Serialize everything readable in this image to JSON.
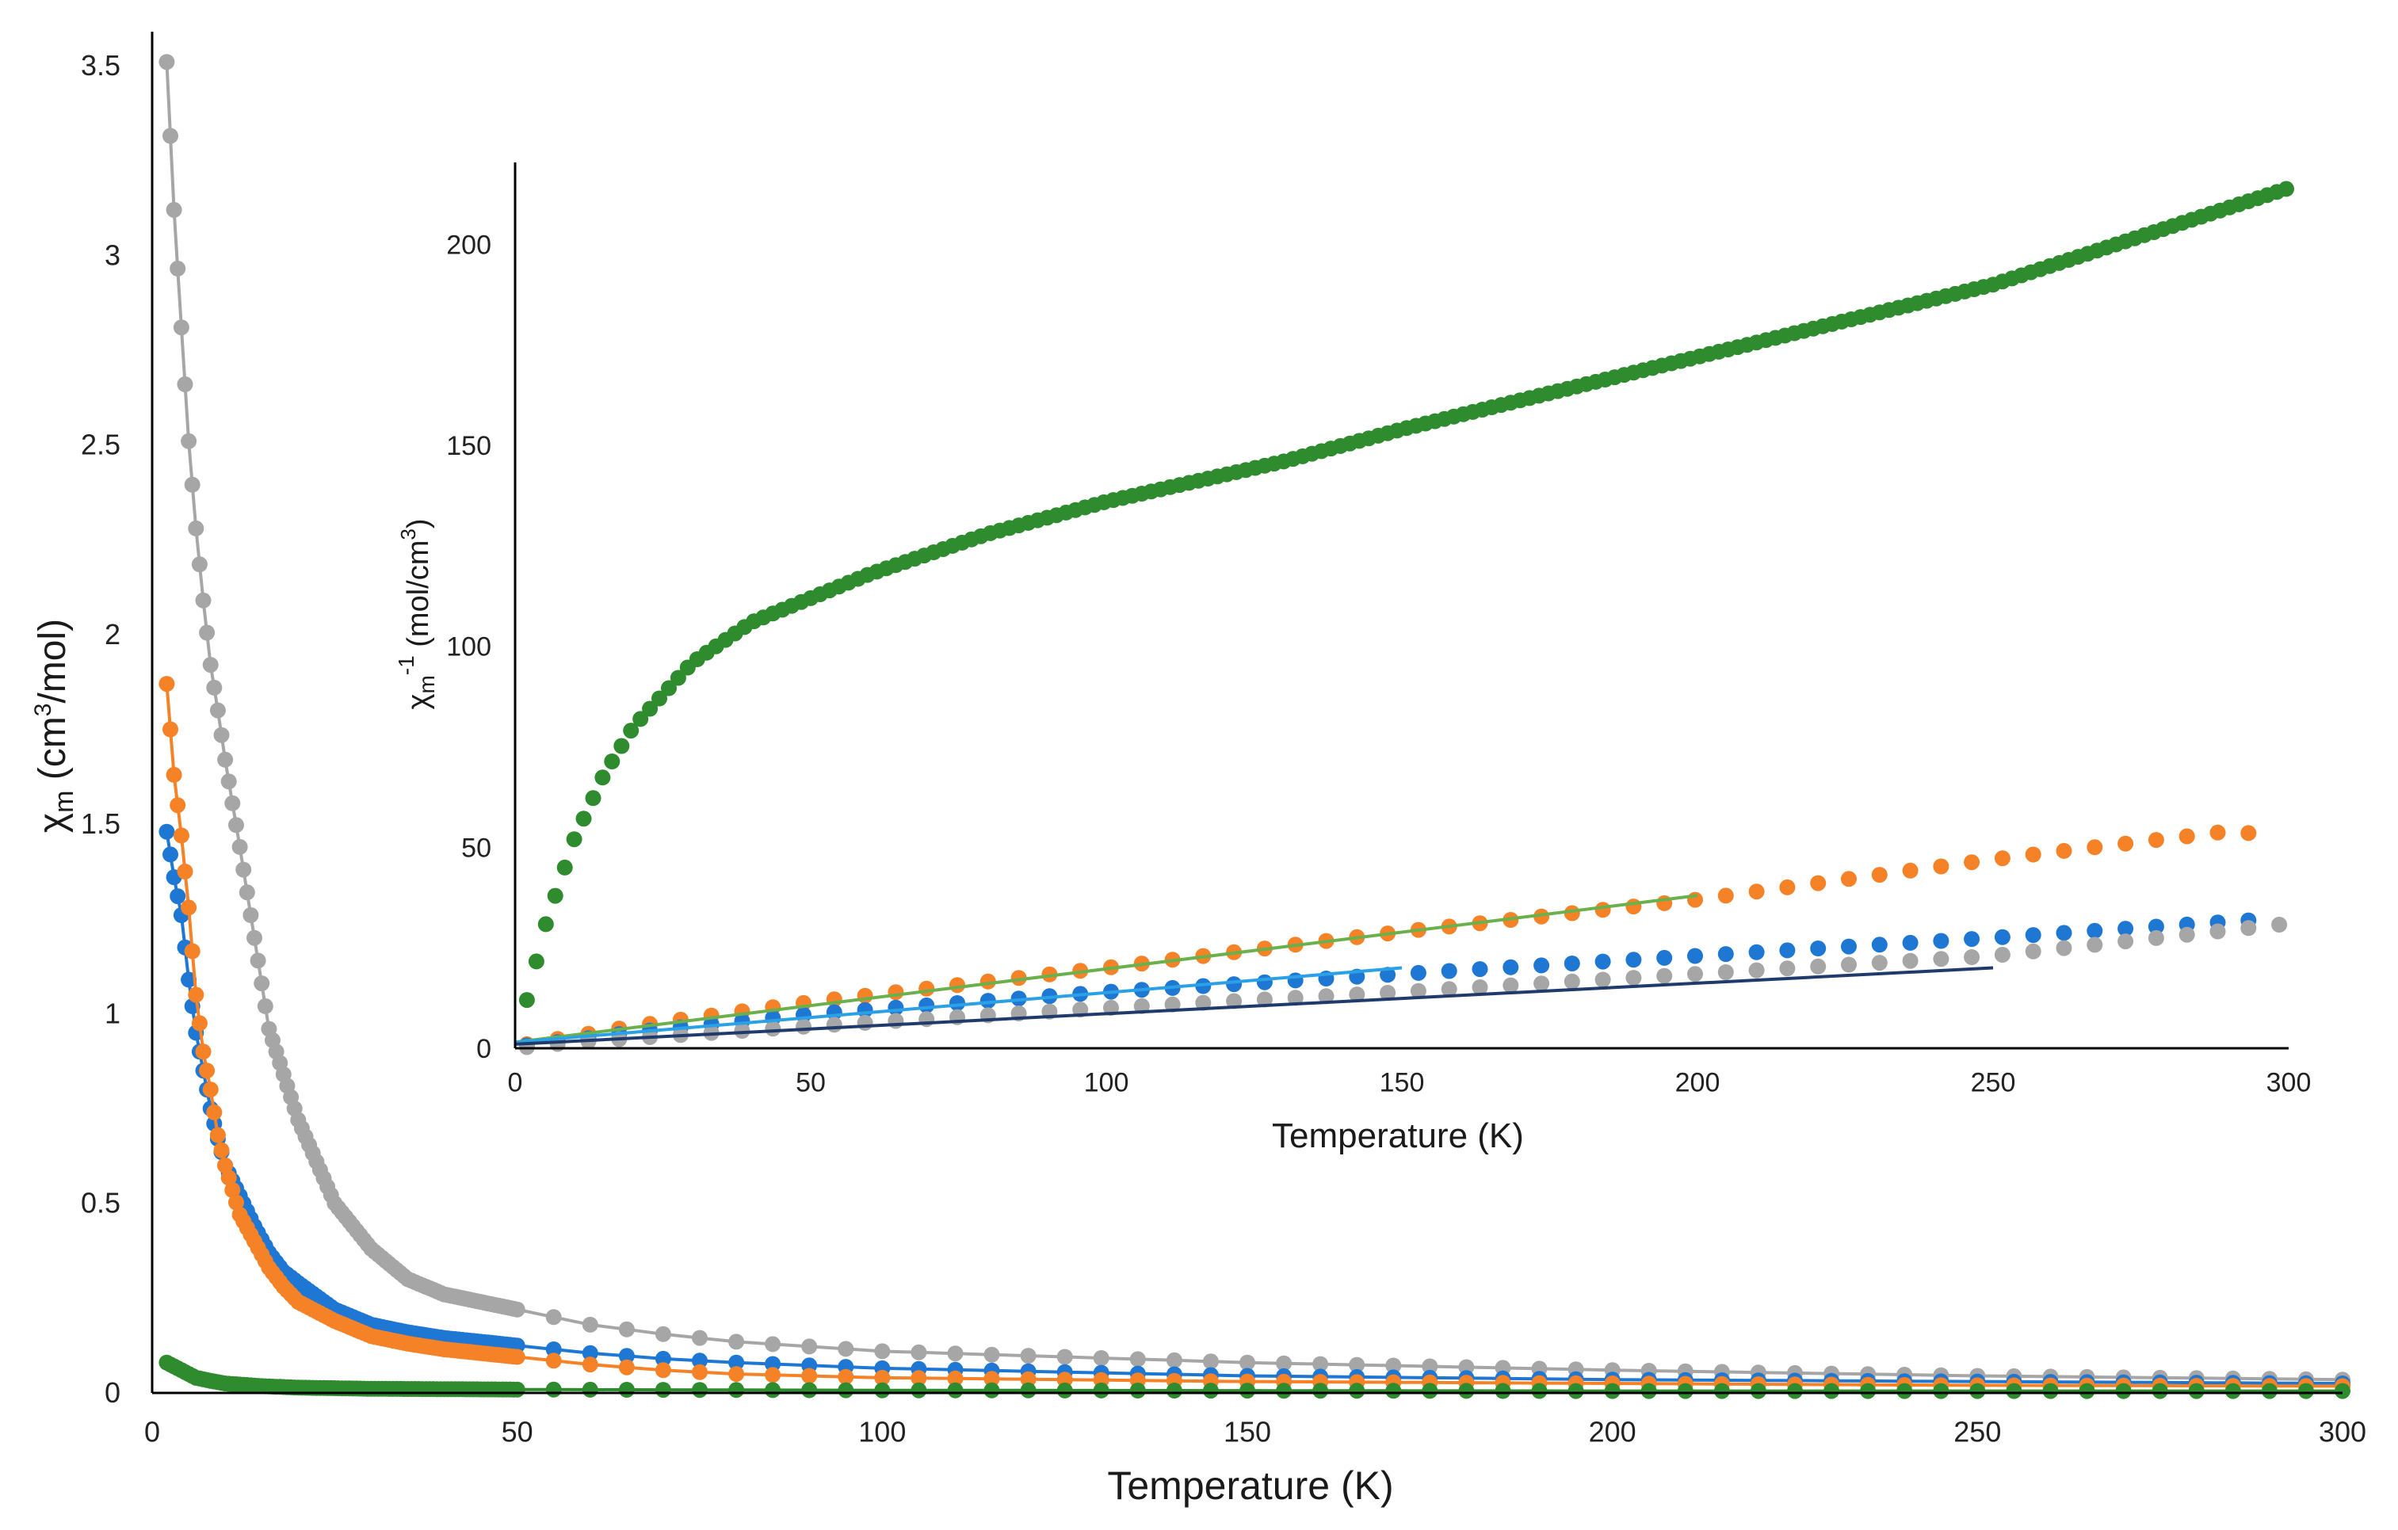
{
  "chart_data": [
    {
      "id": "main",
      "type": "line",
      "xlabel": "Temperature (K)",
      "ylabel": {
        "base": "χ",
        "sub": "m",
        "unit_pre": " (cm",
        "unit_sup": "3",
        "unit_post": "/mol)"
      },
      "xlim": [
        0,
        300
      ],
      "ylim": [
        0,
        3.5
      ],
      "xticks": [
        "0",
        "50",
        "100",
        "150",
        "200",
        "250",
        "300"
      ],
      "yticks": [
        "0",
        "0.5",
        "1",
        "1.5",
        "2",
        "2.5",
        "3",
        "3.5"
      ],
      "grid": false,
      "legend": "none",
      "series": [
        {
          "name": "grey",
          "color": "#a6a6a6",
          "x": [
            2,
            3,
            4,
            5,
            6,
            7,
            8,
            9,
            10,
            12,
            14,
            16,
            18,
            20,
            25,
            30,
            35,
            40,
            45,
            50,
            60,
            70,
            80,
            100,
            150,
            200,
            250,
            300
          ],
          "y": [
            3.51,
            3.12,
            2.81,
            2.51,
            2.28,
            2.09,
            1.92,
            1.8,
            1.67,
            1.44,
            1.2,
            0.96,
            0.84,
            0.72,
            0.5,
            0.38,
            0.3,
            0.26,
            0.24,
            0.22,
            0.18,
            0.155,
            0.135,
            0.11,
            0.08,
            0.06,
            0.045,
            0.035
          ]
        },
        {
          "name": "blue",
          "color": "#1f77d4",
          "x": [
            2,
            3,
            4,
            5,
            6,
            7,
            8,
            9,
            10,
            12,
            14,
            16,
            18,
            20,
            25,
            30,
            35,
            40,
            45,
            50,
            60,
            70,
            80,
            100,
            150,
            200,
            250,
            300
          ],
          "y": [
            1.48,
            1.36,
            1.26,
            1.09,
            0.95,
            0.85,
            0.75,
            0.67,
            0.6,
            0.52,
            0.44,
            0.37,
            0.32,
            0.29,
            0.22,
            0.18,
            0.16,
            0.145,
            0.135,
            0.125,
            0.105,
            0.09,
            0.08,
            0.065,
            0.045,
            0.035,
            0.03,
            0.025
          ]
        },
        {
          "name": "orange",
          "color": "#f58226",
          "x": [
            2,
            3,
            4,
            5,
            6,
            7,
            8,
            9,
            10,
            12,
            14,
            16,
            18,
            20,
            25,
            30,
            35,
            40,
            45,
            50,
            60,
            70,
            80,
            100,
            150,
            200,
            250,
            300
          ],
          "y": [
            1.87,
            1.63,
            1.47,
            1.28,
            1.05,
            0.9,
            0.8,
            0.68,
            0.6,
            0.47,
            0.4,
            0.33,
            0.28,
            0.24,
            0.19,
            0.15,
            0.13,
            0.115,
            0.105,
            0.095,
            0.075,
            0.06,
            0.05,
            0.04,
            0.03,
            0.025,
            0.02,
            0.018
          ]
        },
        {
          "name": "green",
          "color": "#2e8b2e",
          "x": [
            2,
            3,
            4,
            5,
            6,
            8,
            10,
            15,
            20,
            30,
            40,
            50,
            100,
            150,
            200,
            250,
            300
          ],
          "y": [
            0.08,
            0.07,
            0.06,
            0.05,
            0.04,
            0.032,
            0.025,
            0.018,
            0.014,
            0.011,
            0.01,
            0.009,
            0.007,
            0.006,
            0.005,
            0.005,
            0.005
          ]
        }
      ]
    },
    {
      "id": "inset",
      "type": "scatter",
      "xlabel": "Temperature (K)",
      "ylabel": {
        "base": "χ",
        "sub": "m",
        "sup": "-1",
        "unit_pre": " (mol/cm",
        "unit_sup": "3",
        "unit_post": ")"
      },
      "xlim": [
        0,
        300
      ],
      "ylim": [
        0,
        220
      ],
      "xticks": [
        "0",
        "50",
        "100",
        "150",
        "200",
        "250",
        "300"
      ],
      "yticks": [
        "0",
        "50",
        "100",
        "150",
        "200"
      ],
      "grid": false,
      "legend": "none",
      "series": [
        {
          "name": "green",
          "color": "#2e8b2e",
          "x": [
            2,
            5,
            10,
            15,
            20,
            30,
            40,
            50,
            60,
            80,
            100,
            130,
            150,
            200,
            250,
            300
          ],
          "y": [
            12,
            30,
            52,
            68,
            80,
            96,
            106,
            112,
            118,
            128,
            136,
            146,
            154,
            172,
            190,
            214
          ]
        },
        {
          "name": "orange",
          "color": "#f58226",
          "x": [
            2,
            10,
            20,
            30,
            40,
            50,
            100,
            150,
            200,
            250,
            290,
            297
          ],
          "y": [
            1,
            3,
            5.5,
            7.5,
            9.5,
            11.5,
            20,
            29,
            37,
            47,
            54,
            53
          ]
        },
        {
          "name": "blue",
          "color": "#1f77d4",
          "x": [
            2,
            10,
            20,
            30,
            40,
            50,
            100,
            150,
            200,
            250,
            295
          ],
          "y": [
            0.7,
            2,
            4,
            5.5,
            7,
            8.5,
            14,
            18.5,
            23,
            27.5,
            32
          ]
        },
        {
          "name": "grey",
          "color": "#a6a6a6",
          "x": [
            2,
            10,
            20,
            30,
            40,
            50,
            100,
            150,
            200,
            250,
            300
          ],
          "y": [
            0.3,
            1.5,
            2.5,
            3.5,
            4.5,
            5.5,
            10,
            14,
            18.5,
            23,
            31
          ]
        }
      ],
      "fit_lines": [
        {
          "name": "green-fit",
          "color": "#6ab04c",
          "x": [
            0,
            200
          ],
          "y": [
            1.5,
            38
          ]
        },
        {
          "name": "lightblue-fit",
          "color": "#2aa1e6",
          "x": [
            0,
            150
          ],
          "y": [
            1.5,
            20
          ]
        },
        {
          "name": "navy-fit",
          "color": "#1f3a6b",
          "x": [
            0,
            250
          ],
          "y": [
            1,
            20
          ]
        }
      ]
    }
  ]
}
